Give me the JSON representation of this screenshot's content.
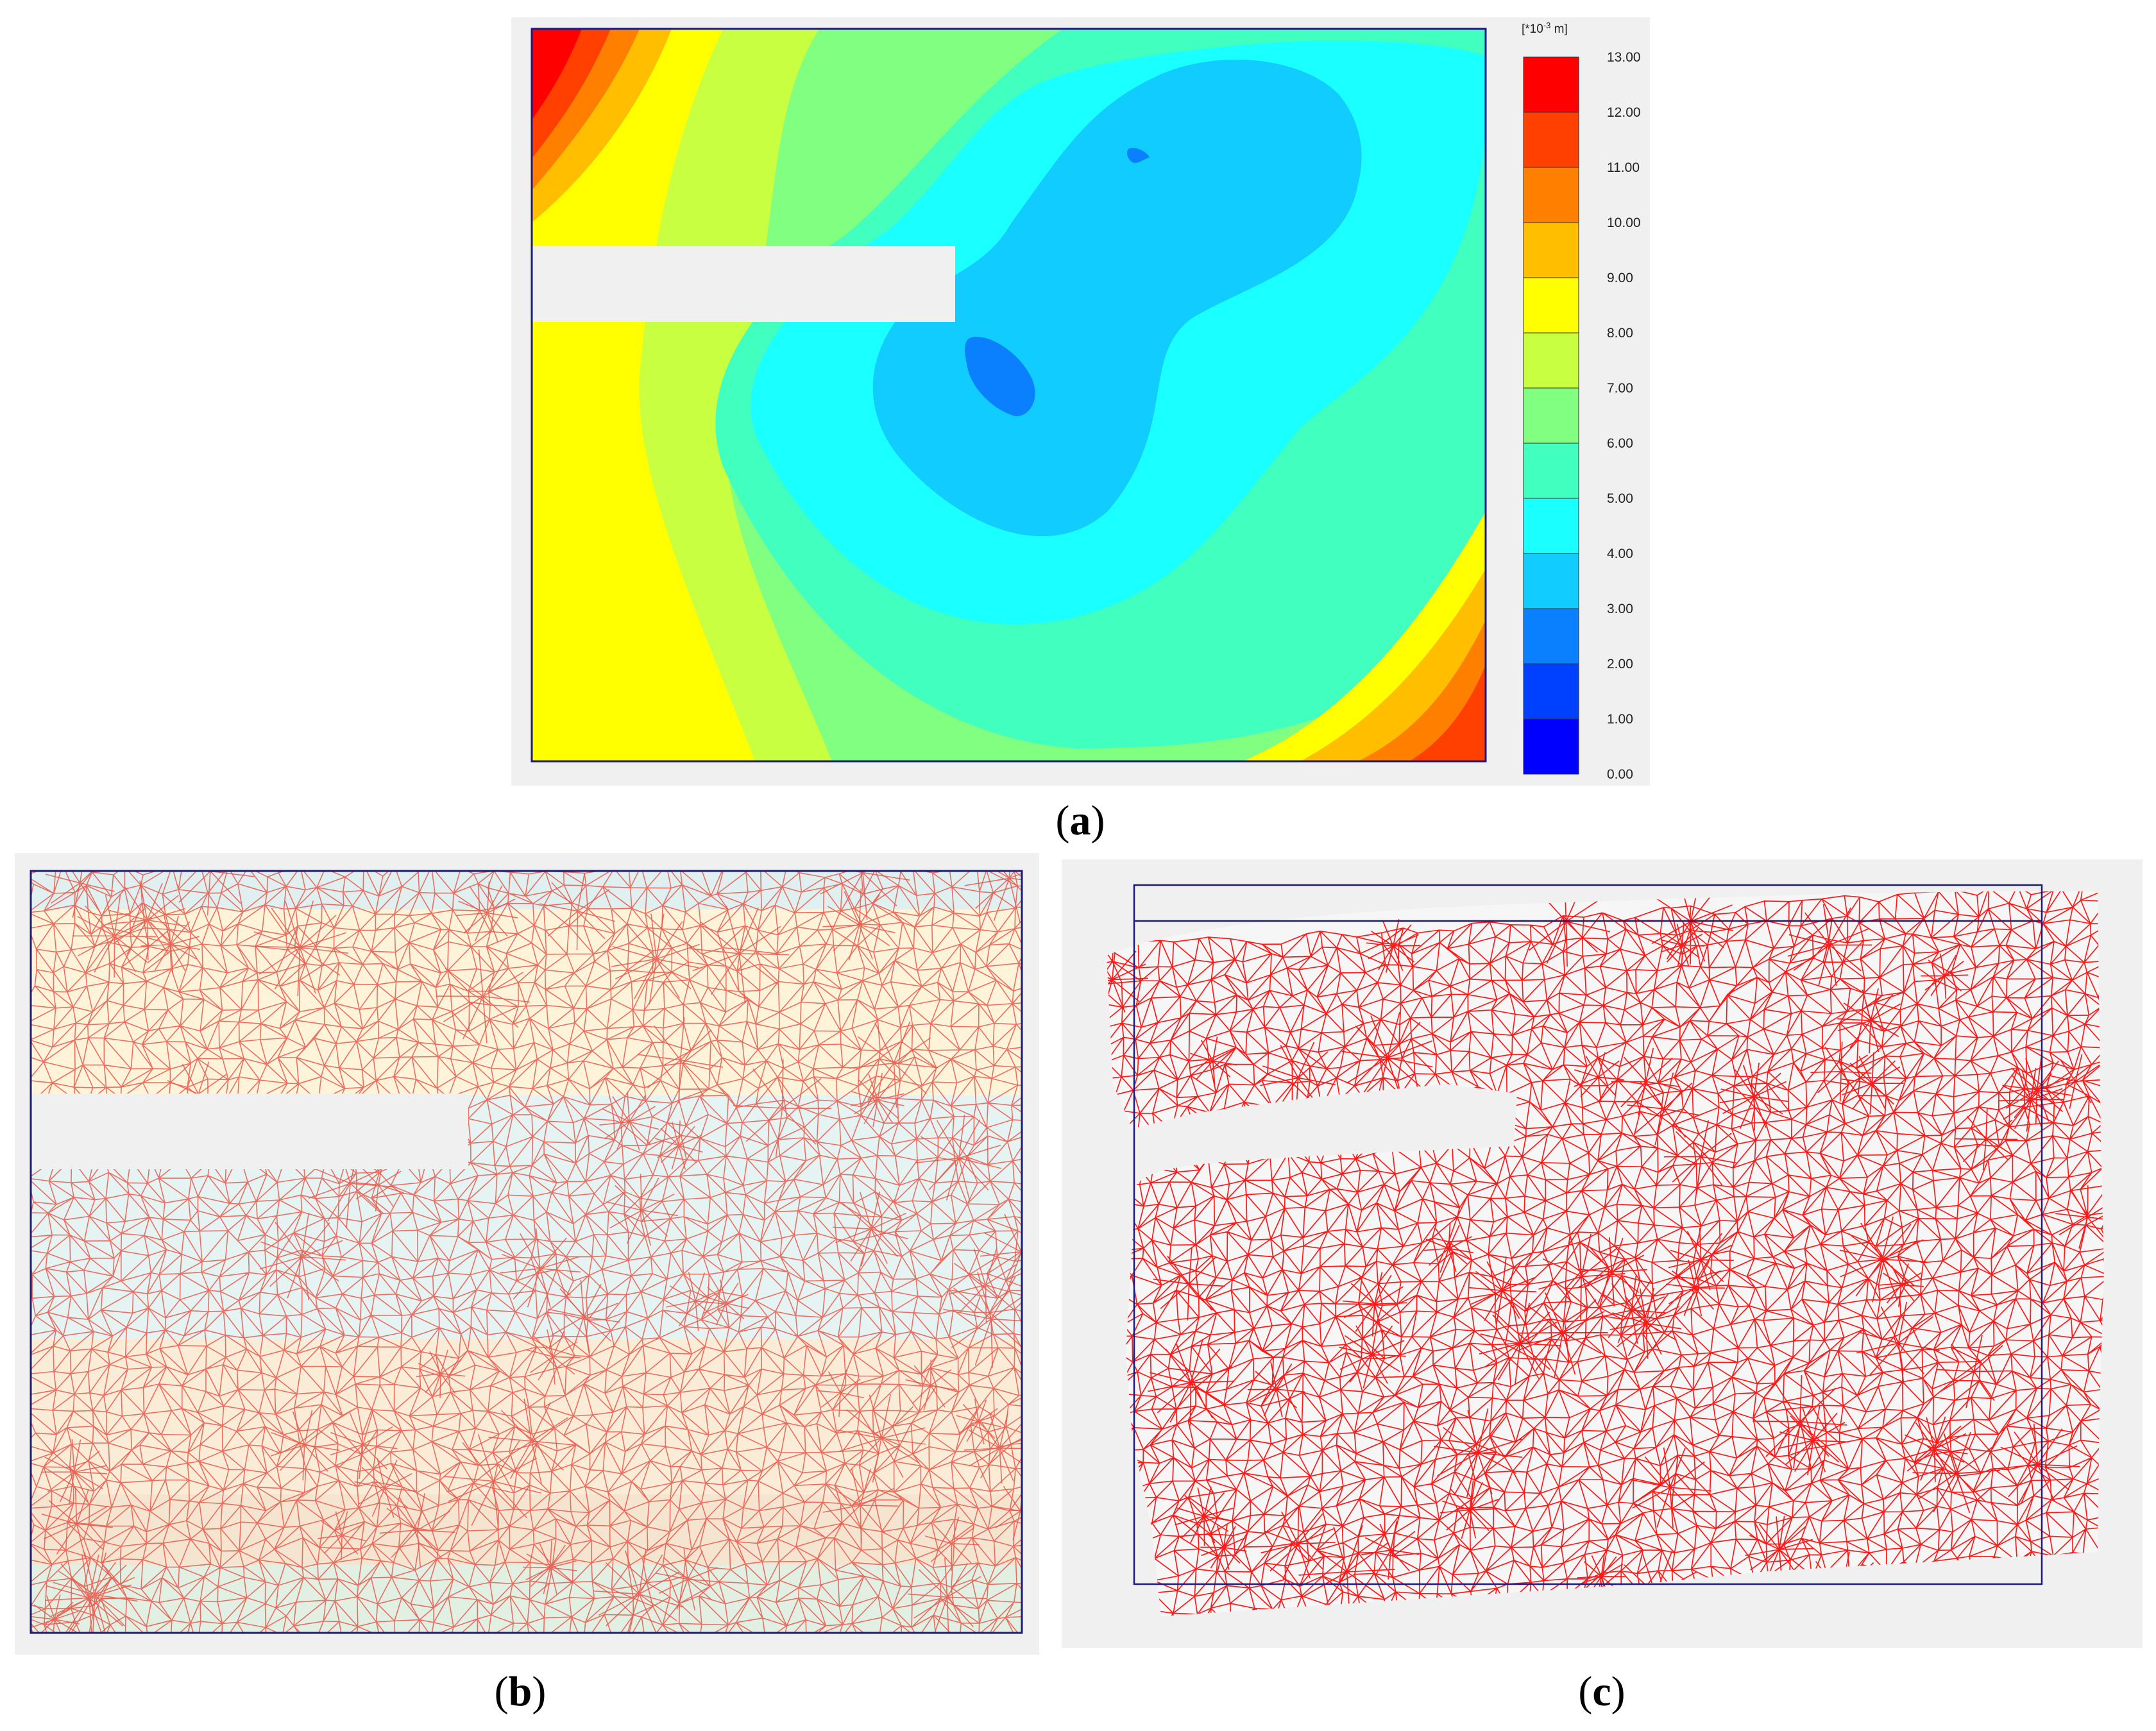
{
  "panel_a": {
    "unit_label": "[*10",
    "unit_exp": "-3",
    "unit_suffix": " m]",
    "legend": [
      {
        "value": "13.00",
        "color": "#ff0000"
      },
      {
        "value": "12.00",
        "color": "#ff4000"
      },
      {
        "value": "11.00",
        "color": "#ff8000"
      },
      {
        "value": "10.00",
        "color": "#ffbf00"
      },
      {
        "value": "9.00",
        "color": "#ffff00"
      },
      {
        "value": "8.00",
        "color": "#c8ff40"
      },
      {
        "value": "7.00",
        "color": "#80ff80"
      },
      {
        "value": "6.00",
        "color": "#40ffbf"
      },
      {
        "value": "5.00",
        "color": "#1affff"
      },
      {
        "value": "4.00",
        "color": "#10ccff"
      },
      {
        "value": "3.00",
        "color": "#0a80ff"
      },
      {
        "value": "2.00",
        "color": "#0040ff"
      },
      {
        "value": "1.00",
        "color": "#0000ff"
      },
      {
        "value": "0.00",
        "color": ""
      }
    ]
  },
  "captions": {
    "a": "a",
    "b": "b",
    "c": "c"
  }
}
